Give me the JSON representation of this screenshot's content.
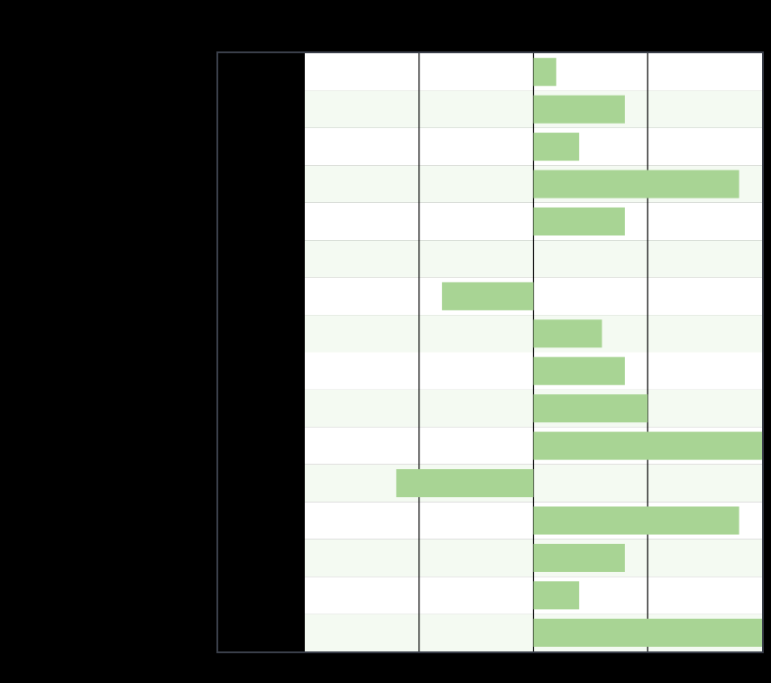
{
  "chart_data": {
    "type": "barh",
    "categories": [
      null,
      null,
      null,
      null,
      null,
      null,
      null,
      null,
      null,
      null,
      null,
      null,
      null,
      null,
      null,
      null
    ],
    "values": [
      0.2,
      0.8,
      0.4,
      1.8,
      0.8,
      0,
      -0.8,
      0.6,
      0.8,
      1.0,
      2.0,
      -1.2,
      1.8,
      0.8,
      0.4,
      2.0
    ],
    "color": "#a8d494",
    "stripe_color": "#f4faf2",
    "xlim": [
      -2,
      2
    ],
    "xticks": [
      -1,
      0,
      1
    ],
    "grid": true
  }
}
